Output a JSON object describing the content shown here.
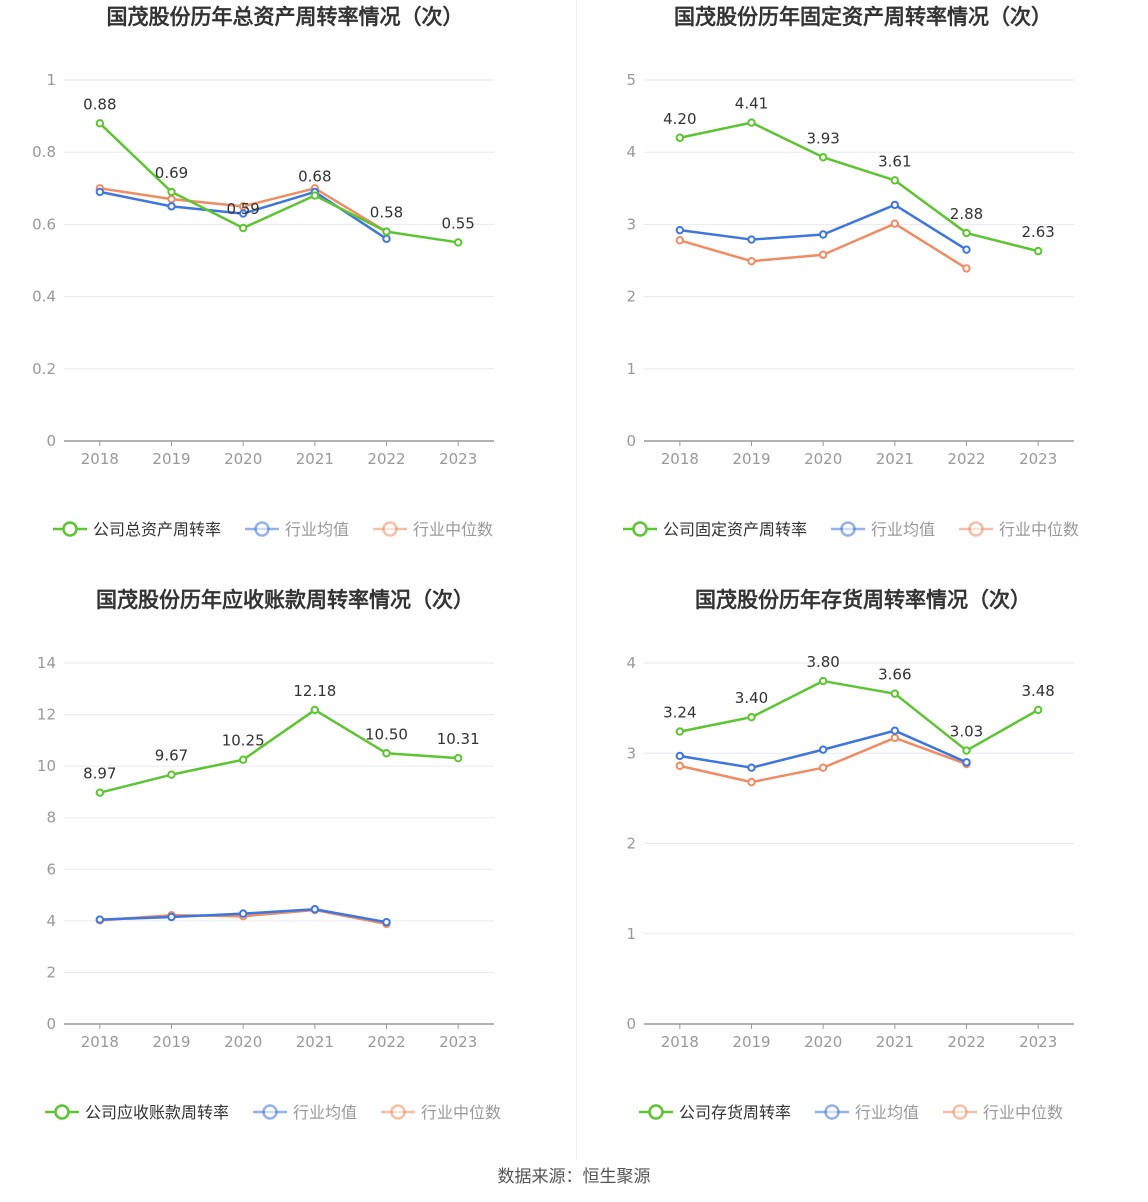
{
  "source": "数据来源：恒生聚源",
  "colors": {
    "company": "#5cc531",
    "avg": "#3e76df",
    "median": "#f08c63",
    "grid": "#e8eaf0",
    "axis": "#999999"
  },
  "chart_data": [
    {
      "type": "line",
      "title": "国茂股份历年总资产周转率情况（次）",
      "categories": [
        "2018",
        "2019",
        "2020",
        "2021",
        "2022",
        "2023"
      ],
      "yticks": [
        "0",
        "0.2",
        "0.4",
        "0.6",
        "0.8",
        "1"
      ],
      "ylim": [
        0,
        1
      ],
      "series": [
        {
          "name": "公司总资产周转率",
          "role": "company",
          "values": [
            0.88,
            0.69,
            0.59,
            0.68,
            0.58,
            0.55
          ],
          "labels": [
            "0.88",
            "0.69",
            "0.59",
            "0.68",
            "0.58",
            "0.55"
          ]
        },
        {
          "name": "行业均值",
          "role": "avg",
          "values": [
            0.69,
            0.65,
            0.63,
            0.69,
            0.56,
            null
          ]
        },
        {
          "name": "行业中位数",
          "role": "median",
          "values": [
            0.7,
            0.67,
            0.65,
            0.7,
            0.58,
            null
          ]
        }
      ]
    },
    {
      "type": "line",
      "title": "国茂股份历年固定资产周转率情况（次）",
      "categories": [
        "2018",
        "2019",
        "2020",
        "2021",
        "2022",
        "2023"
      ],
      "yticks": [
        "0",
        "1",
        "2",
        "3",
        "4",
        "5"
      ],
      "ylim": [
        0,
        5
      ],
      "series": [
        {
          "name": "公司固定资产周转率",
          "role": "company",
          "values": [
            4.2,
            4.41,
            3.93,
            3.61,
            2.88,
            2.63
          ],
          "labels": [
            "4.20",
            "4.41",
            "3.93",
            "3.61",
            "2.88",
            "2.63"
          ]
        },
        {
          "name": "行业均值",
          "role": "avg",
          "values": [
            2.92,
            2.79,
            2.86,
            3.27,
            2.65,
            null
          ]
        },
        {
          "name": "行业中位数",
          "role": "median",
          "values": [
            2.78,
            2.49,
            2.58,
            3.01,
            2.39,
            null
          ]
        }
      ]
    },
    {
      "type": "line",
      "title": "国茂股份历年应收账款周转率情况（次）",
      "categories": [
        "2018",
        "2019",
        "2020",
        "2021",
        "2022",
        "2023"
      ],
      "yticks": [
        "0",
        "2",
        "4",
        "6",
        "8",
        "10",
        "12",
        "14"
      ],
      "ylim": [
        0,
        14
      ],
      "series": [
        {
          "name": "公司应收账款周转率",
          "role": "company",
          "values": [
            8.97,
            9.67,
            10.25,
            12.18,
            10.5,
            10.31
          ],
          "labels": [
            "8.97",
            "9.67",
            "10.25",
            "12.18",
            "10.50",
            "10.31"
          ]
        },
        {
          "name": "行业均值",
          "role": "avg",
          "values": [
            4.05,
            4.15,
            4.28,
            4.45,
            3.95,
            null
          ]
        },
        {
          "name": "行业中位数",
          "role": "median",
          "values": [
            4.02,
            4.22,
            4.18,
            4.42,
            3.88,
            null
          ]
        }
      ]
    },
    {
      "type": "line",
      "title": "国茂股份历年存货周转率情况（次）",
      "categories": [
        "2018",
        "2019",
        "2020",
        "2021",
        "2022",
        "2023"
      ],
      "yticks": [
        "0",
        "1",
        "2",
        "3",
        "4"
      ],
      "ylim": [
        0,
        4
      ],
      "series": [
        {
          "name": "公司存货周转率",
          "role": "company",
          "values": [
            3.24,
            3.4,
            3.8,
            3.66,
            3.03,
            3.48
          ],
          "labels": [
            "3.24",
            "3.40",
            "3.80",
            "3.66",
            "3.03",
            "3.48"
          ]
        },
        {
          "name": "行业均值",
          "role": "avg",
          "values": [
            2.97,
            2.84,
            3.04,
            3.25,
            2.9,
            null
          ]
        },
        {
          "name": "行业中位数",
          "role": "median",
          "values": [
            2.86,
            2.68,
            2.84,
            3.17,
            2.88,
            null
          ]
        }
      ]
    }
  ]
}
